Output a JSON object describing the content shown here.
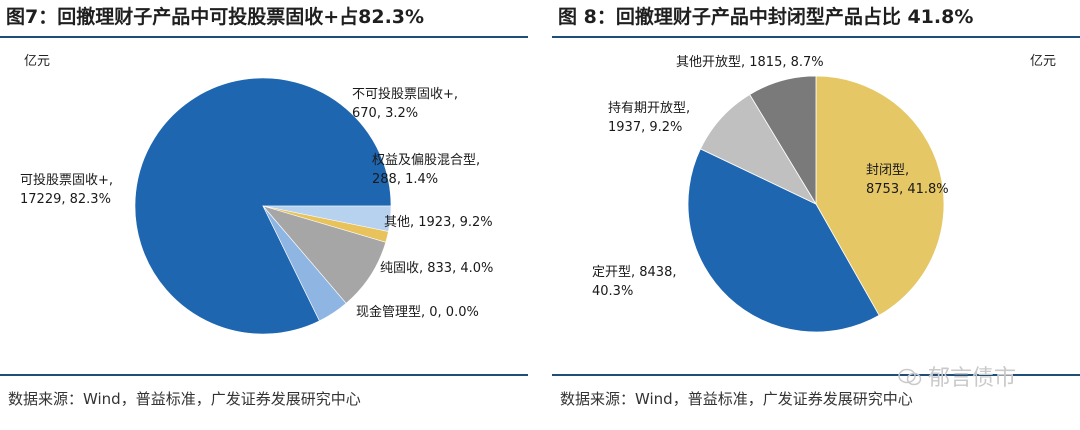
{
  "chart_data": [
    {
      "type": "pie",
      "title": "图7：回撤理财子产品中可投股票固收+占82.3%",
      "unit": "亿元",
      "source": "数据来源：Wind，普益标准，广发证券发展研究中心",
      "colors": {
        "line": "#1f4e79"
      },
      "slices": [
        {
          "name": "可投股票固收+",
          "value": 17229,
          "percent": "82.3%",
          "color": "#1f66b0",
          "label_lines": [
            "可投股票固收+,",
            "17229, 82.3%"
          ]
        },
        {
          "name": "不可投股票固收+",
          "value": 670,
          "percent": "3.2%",
          "color": "#b7d2ee",
          "label_lines": [
            "不可投股票固收+,",
            "670, 3.2%"
          ]
        },
        {
          "name": "权益及偏股混合型",
          "value": 288,
          "percent": "1.4%",
          "color": "#e8c25a",
          "label_lines": [
            "权益及偏股混合型,",
            "288, 1.4%"
          ]
        },
        {
          "name": "其他",
          "value": 1923,
          "percent": "9.2%",
          "color": "#a6a6a6",
          "label_lines": [
            "其他, 1923, 9.2%"
          ]
        },
        {
          "name": "纯固收",
          "value": 833,
          "percent": "4.0%",
          "color": "#8fb6e3",
          "label_lines": [
            "纯固收, 833, 4.0%"
          ]
        },
        {
          "name": "现金管理型",
          "value": 0,
          "percent": "0.0%",
          "color": "#1f66b0",
          "label_lines": [
            "现金管理型, 0, 0.0%"
          ]
        }
      ]
    },
    {
      "type": "pie",
      "title": "图 8：回撤理财子产品中封闭型产品占比 41.8%",
      "unit": "亿元",
      "source": "数据来源：Wind，普益标准，广发证券发展研究中心",
      "slices": [
        {
          "name": "封闭型",
          "value": 8753,
          "percent": "41.8%",
          "color": "#e6c766",
          "label_lines": [
            "封闭型,",
            "8753, 41.8%"
          ]
        },
        {
          "name": "定开型",
          "value": 8438,
          "percent": "40.3%",
          "color": "#1f66b0",
          "label_lines": [
            "定开型, 8438,",
            "40.3%"
          ]
        },
        {
          "name": "持有期开放型",
          "value": 1937,
          "percent": "9.2%",
          "color": "#c0c0c0",
          "label_lines": [
            "持有期开放型,",
            "1937, 9.2%"
          ]
        },
        {
          "name": "其他开放型",
          "value": 1815,
          "percent": "8.7%",
          "color": "#7a7a7a",
          "label_lines": [
            "其他开放型, 1815, 8.7%"
          ]
        }
      ]
    }
  ],
  "watermark": {
    "text": "郁言债市"
  }
}
